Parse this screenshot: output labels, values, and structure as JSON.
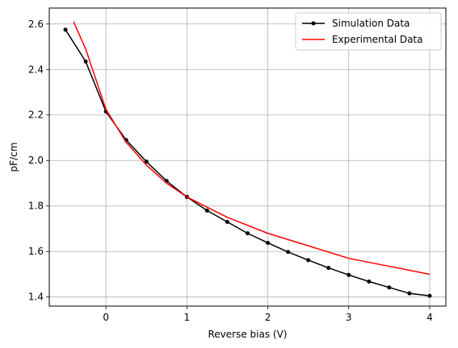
{
  "chart_data": {
    "type": "line",
    "title": "",
    "xlabel": "Reverse bias (V)",
    "ylabel": "pF/cm",
    "xlim": [
      -0.7,
      4.2
    ],
    "ylim": [
      1.36,
      2.67
    ],
    "xticks": [
      0,
      1,
      2,
      3,
      4
    ],
    "yticks": [
      1.4,
      1.6,
      1.8,
      2.0,
      2.2,
      2.4,
      2.6
    ],
    "xtick_labels": [
      "0",
      "1",
      "2",
      "3",
      "4"
    ],
    "ytick_labels": [
      "1.4",
      "1.6",
      "1.8",
      "2.0",
      "2.2",
      "2.4",
      "2.6"
    ],
    "grid": true,
    "legend_position": "top-right",
    "series": [
      {
        "name": "Simulation Data",
        "color": "#000000",
        "marker": "circle",
        "x": [
          -0.5,
          -0.25,
          0,
          0.25,
          0.5,
          0.75,
          1.0,
          1.25,
          1.5,
          1.75,
          2.0,
          2.25,
          2.5,
          2.75,
          3.0,
          3.25,
          3.5,
          3.75,
          4.0
        ],
        "y": [
          2.575,
          2.435,
          2.215,
          2.09,
          1.995,
          1.91,
          1.84,
          1.78,
          1.73,
          1.68,
          1.638,
          1.598,
          1.562,
          1.528,
          1.497,
          1.468,
          1.442,
          1.416,
          1.405
        ]
      },
      {
        "name": "Experimental Data",
        "color": "#ff0000",
        "marker": "none",
        "x": [
          -0.4,
          -0.25,
          0,
          0.25,
          0.5,
          0.75,
          1.0,
          1.5,
          2.0,
          2.5,
          3.0,
          3.5,
          4.0
        ],
        "y": [
          2.61,
          2.49,
          2.225,
          2.08,
          1.98,
          1.9,
          1.84,
          1.75,
          1.68,
          1.625,
          1.57,
          1.535,
          1.5
        ]
      }
    ]
  }
}
